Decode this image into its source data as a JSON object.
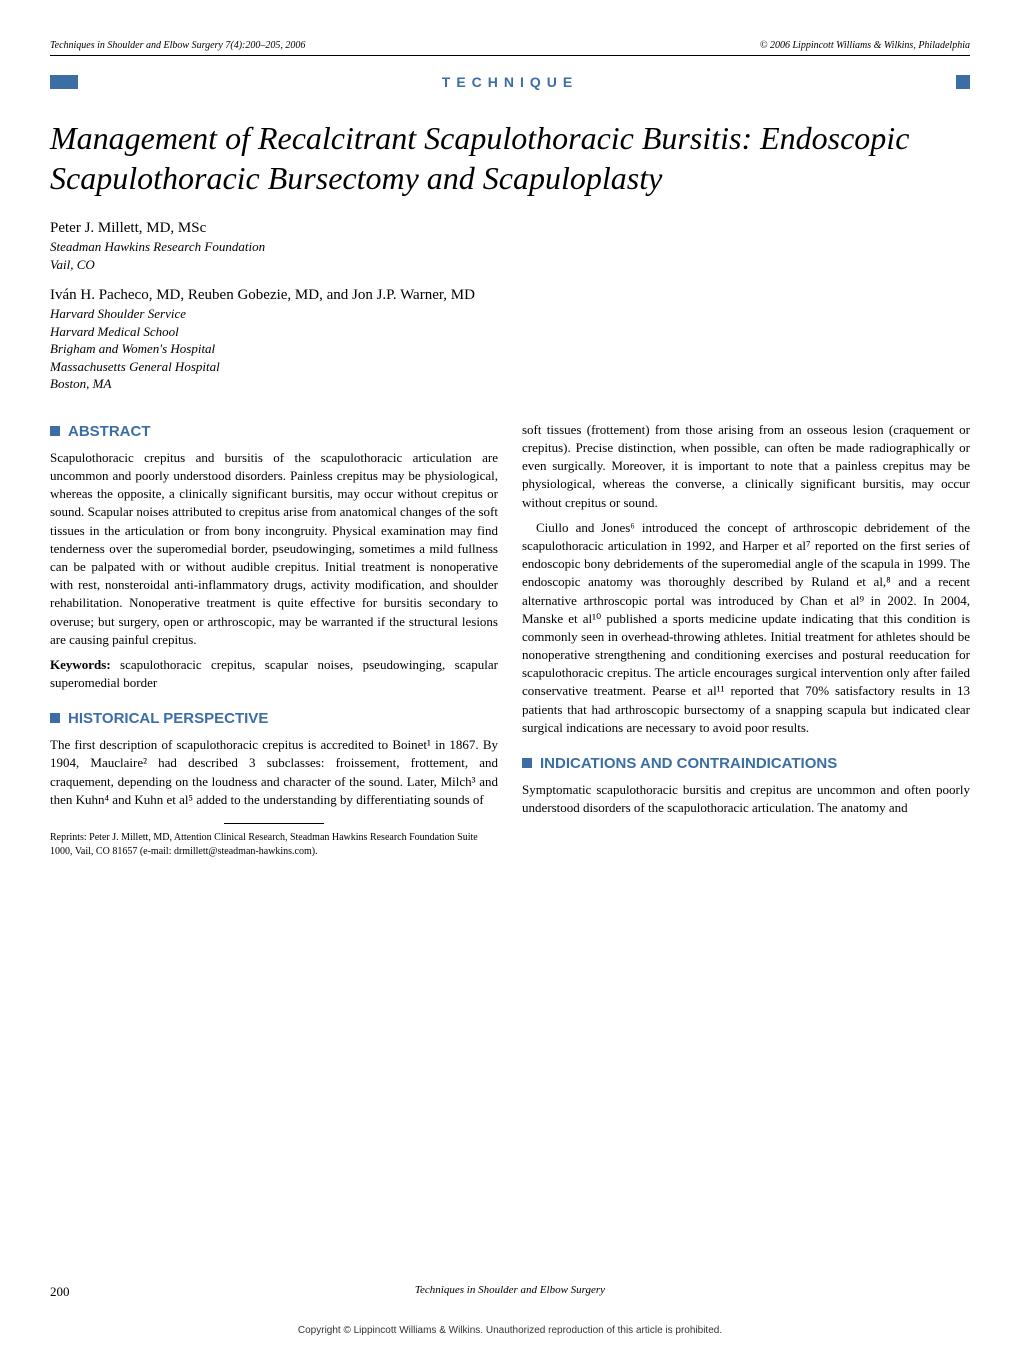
{
  "header": {
    "left": "Techniques in Shoulder and Elbow Surgery 7(4):200–205, 2006",
    "right": "© 2006 Lippincott Williams & Wilkins, Philadelphia"
  },
  "technique_label": "TECHNIQUE",
  "title": "Management of Recalcitrant Scapulothoracic Bursitis: Endoscopic Scapulothoracic Bursectomy and Scapuloplasty",
  "authors": [
    {
      "name": "Peter J. Millett, MD, MSc",
      "affil": [
        "Steadman Hawkins Research Foundation",
        "Vail, CO"
      ]
    },
    {
      "name": "Iván H. Pacheco, MD, Reuben Gobezie, MD, and Jon J.P. Warner, MD",
      "affil": [
        "Harvard Shoulder Service",
        "Harvard Medical School",
        "Brigham and Women's Hospital",
        "Massachusetts General Hospital",
        "Boston, MA"
      ]
    }
  ],
  "abstract_heading": "ABSTRACT",
  "abstract_text": "Scapulothoracic crepitus and bursitis of the scapulothoracic articulation are uncommon and poorly understood disorders. Painless crepitus may be physiological, whereas the opposite, a clinically significant bursitis, may occur without crepitus or sound. Scapular noises attributed to crepitus arise from anatomical changes of the soft tissues in the articulation or from bony incongruity. Physical examination may find tenderness over the superomedial border, pseudowinging, sometimes a mild fullness can be palpated with or without audible crepitus. Initial treatment is nonoperative with rest, nonsteroidal anti-inflammatory drugs, activity modification, and shoulder rehabilitation. Nonoperative treatment is quite effective for bursitis secondary to overuse; but surgery, open or arthroscopic, may be warranted if the structural lesions are causing painful crepitus.",
  "keywords_label": "Keywords:",
  "keywords_text": " scapulothoracic crepitus, scapular noises, pseudowinging, scapular superomedial border",
  "historical_heading": "HISTORICAL PERSPECTIVE",
  "historical_text": "The first description of scapulothoracic crepitus is accredited to Boinet¹ in 1867. By 1904, Mauclaire² had described 3 subclasses: froissement, frottement, and craquement, depending on the loudness and character of the sound. Later, Milch³ and then Kuhn⁴ and Kuhn et al⁵ added to the understanding by differentiating sounds of",
  "reprints_text": "Reprints: Peter J. Millett, MD, Attention Clinical Research, Steadman Hawkins Research Foundation Suite 1000, Vail, CO 81657 (e-mail: drmillett@steadman-hawkins.com).",
  "col2_para1": "soft tissues (frottement) from those arising from an osseous lesion (craquement or crepitus). Precise distinction, when possible, can often be made radiographically or even surgically. Moreover, it is important to note that a painless crepitus may be physiological, whereas the converse, a clinically significant bursitis, may occur without crepitus or sound.",
  "col2_para2": "Ciullo and Jones⁶ introduced the concept of arthroscopic debridement of the scapulothoracic articulation in 1992, and Harper et al⁷ reported on the first series of endoscopic bony debridements of the superomedial angle of the scapula in 1999. The endoscopic anatomy was thoroughly described by Ruland et al,⁸ and a recent alternative arthroscopic portal was introduced by Chan et al⁹ in 2002. In 2004, Manske et al¹⁰ published a sports medicine update indicating that this condition is commonly seen in overhead-throwing athletes. Initial treatment for athletes should be nonoperative strengthening and conditioning exercises and postural reeducation for scapulothoracic crepitus. The article encourages surgical intervention only after failed conservative treatment. Pearse et al¹¹ reported that 70% satisfactory results in 13 patients that had arthroscopic bursectomy of a snapping scapula but indicated clear surgical indications are necessary to avoid poor results.",
  "indications_heading": "INDICATIONS AND CONTRAINDICATIONS",
  "indications_text": "Symptomatic scapulothoracic bursitis and crepitus are uncommon and often poorly understood disorders of the scapulothoracic articulation. The anatomy and",
  "page_number": "200",
  "footer_center": "Techniques in Shoulder and Elbow Surgery",
  "copyright": "Copyright © Lippincott Williams & Wilkins. Unauthorized reproduction of this article is prohibited.",
  "colors": {
    "accent_blue": "#3b6ea5",
    "text": "#000000",
    "background": "#ffffff"
  },
  "typography": {
    "body_font": "Times New Roman",
    "heading_font": "Arial",
    "title_fontsize": 32,
    "body_fontsize": 13,
    "heading_fontsize": 15
  }
}
